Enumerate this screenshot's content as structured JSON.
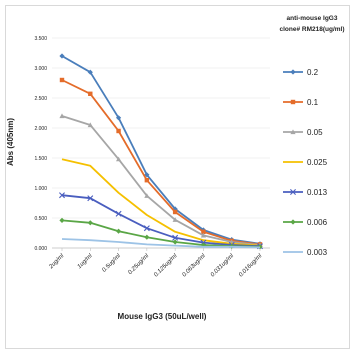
{
  "chart_data": {
    "type": "line",
    "categories": [
      "2ug/ml",
      "1ug/ml",
      "0.5ug/ml",
      "0.25ug/ml",
      "0.125ug/ml",
      "0.063ug/ml",
      "0.031ug/ml",
      "0.016ug/ml"
    ],
    "yticks": [
      "0.000",
      "0.500",
      "1.000",
      "1.500",
      "2.000",
      "2.500",
      "3.000",
      "3.500"
    ],
    "ylim": [
      0,
      3.5
    ],
    "xlabel": "Mouse IgG3 (50uL/well)",
    "ylabel": "Abs (405nm)",
    "legend_title_line1": "anti-mouse IgG3",
    "legend_title_line2": "clone# RM218(ug/ml)",
    "legend_position": "right",
    "grid": "horizontal",
    "series": [
      {
        "name": "0.2",
        "color": "#4a7ebb",
        "marker": "diamond",
        "values": [
          3.2,
          2.93,
          2.17,
          1.22,
          0.65,
          0.3,
          0.14,
          0.07
        ]
      },
      {
        "name": "0.1",
        "color": "#e46c2a",
        "marker": "square",
        "values": [
          2.8,
          2.57,
          1.95,
          1.13,
          0.6,
          0.27,
          0.12,
          0.06
        ]
      },
      {
        "name": "0.05",
        "color": "#a6a6a6",
        "marker": "triangle",
        "values": [
          2.2,
          2.05,
          1.48,
          0.87,
          0.47,
          0.21,
          0.1,
          0.05
        ]
      },
      {
        "name": "0.025",
        "color": "#f5c000",
        "marker": "none",
        "values": [
          1.48,
          1.37,
          0.92,
          0.55,
          0.27,
          0.13,
          0.07,
          0.04
        ]
      },
      {
        "name": "0.013",
        "color": "#4a5ebf",
        "marker": "x",
        "values": [
          0.88,
          0.83,
          0.57,
          0.33,
          0.17,
          0.09,
          0.05,
          0.03
        ]
      },
      {
        "name": "0.006",
        "color": "#5aa646",
        "marker": "diamond",
        "values": [
          0.46,
          0.42,
          0.28,
          0.18,
          0.1,
          0.05,
          0.03,
          0.02
        ]
      },
      {
        "name": "0.003",
        "color": "#9dc3e6",
        "marker": "none",
        "values": [
          0.15,
          0.13,
          0.1,
          0.06,
          0.04,
          0.02,
          0.02,
          0.01
        ]
      }
    ]
  }
}
